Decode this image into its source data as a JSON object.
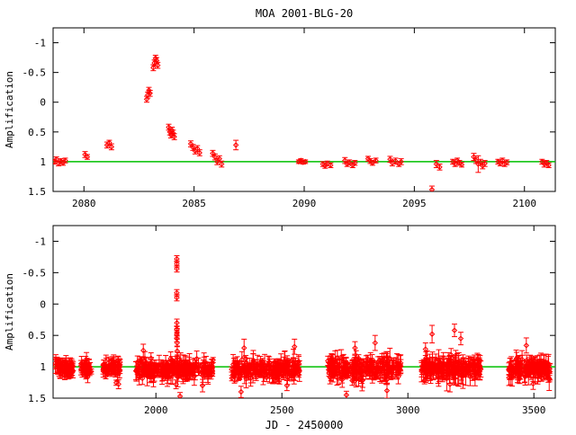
{
  "title": "MOA 2001-BLG-20",
  "colors": {
    "data": "#ff0000",
    "baseline": "#00c000",
    "axis": "#000000",
    "background": "#ffffff"
  },
  "chart_data": [
    {
      "type": "scatter",
      "panel": "top",
      "title": "MOA 2001-BLG-20",
      "xlabel": "",
      "ylabel": "Amplification",
      "xlim": [
        2078.6,
        2101.4
      ],
      "ylim": [
        -1.25,
        1.5
      ],
      "y_axis_reversed": true,
      "grid": false,
      "xticks": [
        2080,
        2085,
        2090,
        2095,
        2100
      ],
      "xtick_labels": [
        "2080",
        "2085",
        "2090",
        "2095",
        "2100"
      ],
      "yticks": [
        -1,
        -0.5,
        0,
        0.5,
        1,
        1.5
      ],
      "ytick_labels": [
        "-1",
        "-0.5",
        "0",
        "0.5",
        "1",
        "1.5"
      ],
      "baseline_y": 1,
      "points": [
        [
          2078.65,
          1.0,
          0.04
        ],
        [
          2078.75,
          0.96,
          0.04
        ],
        [
          2078.85,
          1.03,
          0.04
        ],
        [
          2078.95,
          0.99,
          0.04
        ],
        [
          2079.05,
          1.02,
          0.04
        ],
        [
          2079.15,
          0.98,
          0.04
        ],
        [
          2080.05,
          0.88,
          0.05
        ],
        [
          2080.15,
          0.92,
          0.04
        ],
        [
          2081.05,
          0.72,
          0.05
        ],
        [
          2081.15,
          0.68,
          0.04
        ],
        [
          2081.25,
          0.75,
          0.05
        ],
        [
          2082.85,
          -0.05,
          0.05
        ],
        [
          2082.9,
          -0.12,
          0.05
        ],
        [
          2082.95,
          -0.2,
          0.05
        ],
        [
          2083.0,
          -0.15,
          0.05
        ],
        [
          2083.15,
          -0.58,
          0.05
        ],
        [
          2083.2,
          -0.66,
          0.05
        ],
        [
          2083.25,
          -0.74,
          0.05
        ],
        [
          2083.3,
          -0.7,
          0.05
        ],
        [
          2083.35,
          -0.62,
          0.05
        ],
        [
          2083.85,
          0.42,
          0.05
        ],
        [
          2083.9,
          0.5,
          0.05
        ],
        [
          2083.95,
          0.55,
          0.05
        ],
        [
          2084.0,
          0.47,
          0.05
        ],
        [
          2084.05,
          0.52,
          0.05
        ],
        [
          2084.1,
          0.58,
          0.05
        ],
        [
          2084.85,
          0.7,
          0.05
        ],
        [
          2084.95,
          0.76,
          0.05
        ],
        [
          2085.05,
          0.82,
          0.05
        ],
        [
          2085.15,
          0.78,
          0.05
        ],
        [
          2085.25,
          0.85,
          0.05
        ],
        [
          2085.85,
          0.86,
          0.05
        ],
        [
          2085.95,
          0.92,
          0.05
        ],
        [
          2086.05,
          1.0,
          0.05
        ],
        [
          2086.15,
          0.95,
          0.05
        ],
        [
          2086.25,
          1.04,
          0.05
        ],
        [
          2086.9,
          0.72,
          0.08
        ],
        [
          2089.75,
          1.0,
          0.03
        ],
        [
          2089.85,
          0.98,
          0.03
        ],
        [
          2089.95,
          1.01,
          0.03
        ],
        [
          2090.05,
          1.0,
          0.03
        ],
        [
          2090.85,
          1.04,
          0.04
        ],
        [
          2090.95,
          1.07,
          0.04
        ],
        [
          2091.05,
          1.03,
          0.04
        ],
        [
          2091.2,
          1.06,
          0.04
        ],
        [
          2091.85,
          0.98,
          0.05
        ],
        [
          2091.95,
          1.04,
          0.04
        ],
        [
          2092.05,
          1.01,
          0.04
        ],
        [
          2092.2,
          1.06,
          0.04
        ],
        [
          2092.3,
          1.02,
          0.04
        ],
        [
          2092.9,
          0.95,
          0.04
        ],
        [
          2093.0,
          0.99,
          0.04
        ],
        [
          2093.1,
          1.02,
          0.04
        ],
        [
          2093.25,
          0.98,
          0.04
        ],
        [
          2093.9,
          0.96,
          0.05
        ],
        [
          2094.0,
          1.02,
          0.05
        ],
        [
          2094.15,
          0.99,
          0.05
        ],
        [
          2094.3,
          1.04,
          0.04
        ],
        [
          2094.4,
          1.0,
          0.05
        ],
        [
          2095.8,
          1.47,
          0.06
        ],
        [
          2096.0,
          1.04,
          0.06
        ],
        [
          2096.15,
          1.09,
          0.05
        ],
        [
          2096.75,
          1.0,
          0.04
        ],
        [
          2096.85,
          1.04,
          0.04
        ],
        [
          2096.95,
          0.98,
          0.04
        ],
        [
          2097.05,
          1.02,
          0.04
        ],
        [
          2097.15,
          1.05,
          0.04
        ],
        [
          2097.7,
          0.92,
          0.06
        ],
        [
          2097.8,
          0.98,
          0.05
        ],
        [
          2097.9,
          1.04,
          0.14
        ],
        [
          2098.0,
          1.01,
          0.05
        ],
        [
          2098.1,
          1.07,
          0.05
        ],
        [
          2098.2,
          1.03,
          0.05
        ],
        [
          2098.8,
          1.0,
          0.04
        ],
        [
          2098.9,
          1.03,
          0.04
        ],
        [
          2099.0,
          0.98,
          0.04
        ],
        [
          2099.1,
          1.04,
          0.04
        ],
        [
          2099.2,
          1.01,
          0.04
        ],
        [
          2100.8,
          1.0,
          0.04
        ],
        [
          2100.9,
          1.04,
          0.05
        ],
        [
          2101.0,
          1.02,
          0.04
        ],
        [
          2101.1,
          1.06,
          0.04
        ]
      ]
    },
    {
      "type": "scatter",
      "panel": "bottom",
      "title": "",
      "xlabel": "JD - 2450000",
      "ylabel": "Amplification",
      "xlim": [
        1592,
        3585
      ],
      "ylim": [
        -1.25,
        1.5
      ],
      "y_axis_reversed": true,
      "grid": false,
      "xticks": [
        2000,
        2500,
        3000,
        3500
      ],
      "xtick_labels": [
        "2000",
        "2500",
        "3000",
        "3500"
      ],
      "yticks": [
        -1,
        -0.5,
        0,
        0.5,
        1,
        1.5
      ],
      "ytick_labels": [
        "-1",
        "-0.5",
        "0",
        "0.5",
        "1",
        "1.5"
      ],
      "baseline_y": 1,
      "points": [
        [
          2083.0,
          -0.72,
          0.05
        ],
        [
          2083.1,
          -0.64,
          0.05
        ],
        [
          2083.2,
          -0.56,
          0.05
        ],
        [
          2082.9,
          -0.18,
          0.05
        ],
        [
          2083.0,
          -0.1,
          0.05
        ],
        [
          2083.3,
          0.3,
          0.06
        ],
        [
          2083.2,
          0.4,
          0.05
        ],
        [
          2083.1,
          0.48,
          0.06
        ],
        [
          2083.0,
          0.55,
          0.05
        ],
        [
          2084.0,
          0.45,
          0.06
        ],
        [
          2084.2,
          0.62,
          0.06
        ],
        [
          2084.5,
          0.75,
          0.08
        ],
        [
          2085.5,
          0.85,
          0.08
        ],
        [
          2095.8,
          1.47,
          0.06
        ],
        [
          2185,
          1.3,
          0.1
        ],
        [
          2338,
          1.4,
          0.09
        ],
        [
          2520,
          1.3,
          0.08
        ],
        [
          2756,
          1.45,
          0.06
        ],
        [
          2917,
          1.38,
          0.12
        ],
        [
          3167,
          1.28,
          0.12
        ],
        [
          3497,
          1.27,
          0.09
        ],
        [
          2080,
          1.28,
          0.07
        ],
        [
          3096,
          0.48,
          0.14
        ],
        [
          3185,
          0.42,
          0.1
        ],
        [
          3210,
          0.55,
          0.1
        ],
        [
          2870,
          0.62,
          0.12
        ],
        [
          3470,
          0.66,
          0.12
        ],
        [
          2550,
          0.68,
          0.12
        ],
        [
          2350,
          0.7,
          0.14
        ],
        [
          1950,
          0.74,
          0.1
        ],
        [
          2790,
          0.7,
          0.1
        ],
        [
          3070,
          0.72,
          0.1
        ]
      ],
      "clusters": [
        {
          "x0": 1600,
          "x1": 1672,
          "n": 60,
          "mean": 1.02,
          "sigma": 0.06,
          "err_min": 0.04,
          "err_max": 0.14
        },
        {
          "x0": 1700,
          "x1": 1752,
          "n": 35,
          "mean": 1.03,
          "sigma": 0.06,
          "err_min": 0.04,
          "err_max": 0.14
        },
        {
          "x0": 1790,
          "x1": 1858,
          "n": 55,
          "mean": 1.02,
          "sigma": 0.06,
          "err_min": 0.04,
          "err_max": 0.16
        },
        {
          "x0": 1920,
          "x1": 2230,
          "n": 230,
          "mean": 1.03,
          "sigma": 0.07,
          "err_min": 0.04,
          "err_max": 0.16
        },
        {
          "x0": 2300,
          "x1": 2572,
          "n": 190,
          "mean": 1.03,
          "sigma": 0.07,
          "err_min": 0.04,
          "err_max": 0.18
        },
        {
          "x0": 2682,
          "x1": 2972,
          "n": 210,
          "mean": 1.04,
          "sigma": 0.08,
          "err_min": 0.05,
          "err_max": 0.18
        },
        {
          "x0": 3052,
          "x1": 3290,
          "n": 180,
          "mean": 1.03,
          "sigma": 0.08,
          "err_min": 0.05,
          "err_max": 0.2
        },
        {
          "x0": 3400,
          "x1": 3565,
          "n": 140,
          "mean": 1.03,
          "sigma": 0.07,
          "err_min": 0.05,
          "err_max": 0.18
        }
      ],
      "seed": 42
    }
  ]
}
